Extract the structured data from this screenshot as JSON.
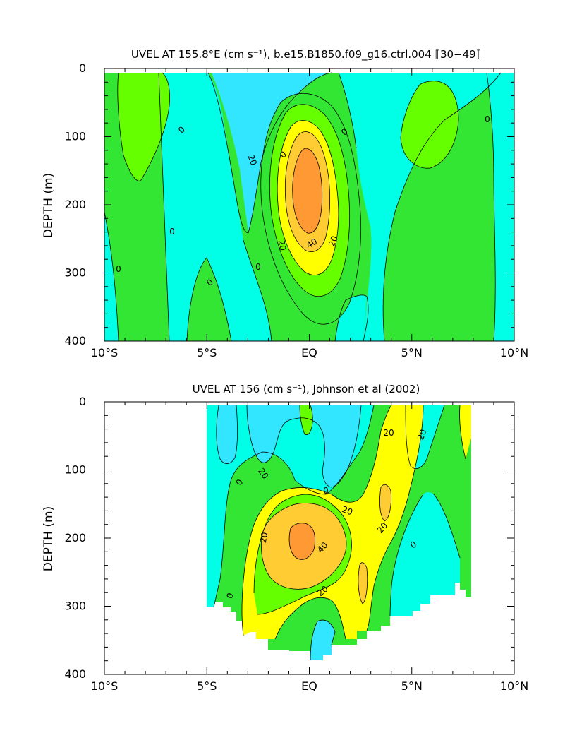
{
  "colors": {
    "cyan": "#33e6ff",
    "aqua": "#00ffe6",
    "green": "#33e633",
    "lime": "#66ff00",
    "yellow": "#ffff00",
    "gold": "#ffcc33",
    "orange": "#ff9933"
  },
  "chart_data": [
    {
      "type": "contour",
      "title": "UVEL AT 155.8°E (cm s⁻¹), b.e15.B1850.f09_g16.ctrl.004 ⟦30−49⟧",
      "xlabel": "",
      "ylabel": "DEPTH (m)",
      "x_tick_labels": [
        "10°S",
        "5°S",
        "EQ",
        "5°N",
        "10°N"
      ],
      "x_tick_values": [
        -10,
        -5,
        0,
        5,
        10
      ],
      "y_tick_values": [
        0,
        100,
        200,
        300,
        400
      ],
      "xlim": [
        -10,
        10
      ],
      "ylim": [
        400,
        0
      ],
      "contour_labels": [
        {
          "text": "0",
          "x": 4.5,
          "y": 350
        },
        {
          "text": "0",
          "x": 1.5,
          "y": 300
        },
        {
          "text": "20",
          "x": -1.5,
          "y": 60
        },
        {
          "text": "0",
          "x": -1.8,
          "y": 35
        },
        {
          "text": "0",
          "x": 0,
          "y": 350
        },
        {
          "text": "0",
          "x": 4,
          "y": 180
        },
        {
          "text": "0",
          "x": 7,
          "y": 140
        },
        {
          "text": "20",
          "x": 4.1,
          "y": 220
        },
        {
          "text": "40",
          "x": 6,
          "y": 215
        },
        {
          "text": "20",
          "x": 6,
          "y": 180
        },
        {
          "text": "0",
          "x": 12,
          "y": 240
        },
        {
          "text": "0",
          "x": 16,
          "y": 260
        }
      ]
    },
    {
      "type": "contour",
      "title": "UVEL AT 156 (cm s⁻¹), Johnson et al (2002)",
      "xlabel": "",
      "ylabel": "DEPTH (m)",
      "x_tick_labels": [
        "10°S",
        "5°S",
        "EQ",
        "5°N",
        "10°N"
      ],
      "x_tick_values": [
        -10,
        -5,
        0,
        5,
        10
      ],
      "y_tick_values": [
        0,
        100,
        200,
        300,
        400
      ],
      "xlim": [
        -10,
        10
      ],
      "ylim": [
        400,
        0
      ],
      "contour_labels": [
        {
          "text": "20",
          "x": 3.8,
          "y": 45
        },
        {
          "text": "20",
          "x": 5.5,
          "y": 45
        },
        {
          "text": "20",
          "x": -2.3,
          "y": 105
        },
        {
          "text": "0",
          "x": -3.4,
          "y": 115
        },
        {
          "text": "0",
          "x": 0.8,
          "y": 130
        },
        {
          "text": "20",
          "x": 1.9,
          "y": 160
        },
        {
          "text": "20",
          "x": -2,
          "y": 200
        },
        {
          "text": "40",
          "x": 0.6,
          "y": 210
        },
        {
          "text": "20",
          "x": 3.6,
          "y": 185
        },
        {
          "text": "0",
          "x": 5,
          "y": 180
        },
        {
          "text": "20",
          "x": 0.8,
          "y": 265
        },
        {
          "text": "0",
          "x": -3.9,
          "y": 255
        }
      ]
    }
  ]
}
